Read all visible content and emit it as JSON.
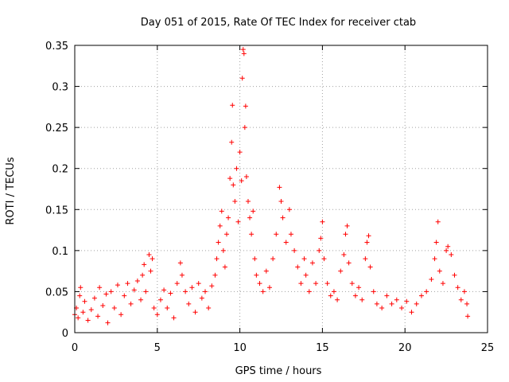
{
  "chart_data": {
    "type": "scatter",
    "title": "Day 051 of 2015, Rate Of TEC Index for receiver ctab",
    "xlabel": "GPS time / hours",
    "ylabel": "ROTI / TECUs",
    "xlim": [
      0,
      25
    ],
    "ylim": [
      0,
      0.35
    ],
    "x_ticks": [
      0,
      5,
      10,
      15,
      20,
      25
    ],
    "x_tick_labels": [
      "0",
      "5",
      "10",
      "15",
      "20",
      "25"
    ],
    "y_ticks": [
      0,
      0.05,
      0.1,
      0.15,
      0.2,
      0.25,
      0.3,
      0.35
    ],
    "y_tick_labels": [
      "0",
      "0.05",
      "0.1",
      "0.15",
      "0.2",
      "0.25",
      "0.3",
      "0.35"
    ],
    "grid": true,
    "marker": "+",
    "color": "#ff0000",
    "series": [
      {
        "name": "ROTI",
        "points": [
          [
            0.0,
            0.022
          ],
          [
            0.1,
            0.03
          ],
          [
            0.2,
            0.018
          ],
          [
            0.3,
            0.045
          ],
          [
            0.35,
            0.055
          ],
          [
            0.5,
            0.025
          ],
          [
            0.6,
            0.038
          ],
          [
            0.8,
            0.015
          ],
          [
            1.0,
            0.028
          ],
          [
            1.2,
            0.042
          ],
          [
            1.4,
            0.02
          ],
          [
            1.5,
            0.055
          ],
          [
            1.7,
            0.033
          ],
          [
            1.9,
            0.047
          ],
          [
            2.0,
            0.012
          ],
          [
            2.2,
            0.05
          ],
          [
            2.4,
            0.03
          ],
          [
            2.6,
            0.058
          ],
          [
            2.8,
            0.022
          ],
          [
            3.0,
            0.045
          ],
          [
            3.2,
            0.06
          ],
          [
            3.4,
            0.035
          ],
          [
            3.6,
            0.052
          ],
          [
            3.8,
            0.063
          ],
          [
            4.0,
            0.04
          ],
          [
            4.1,
            0.07
          ],
          [
            4.2,
            0.083
          ],
          [
            4.3,
            0.05
          ],
          [
            4.5,
            0.095
          ],
          [
            4.6,
            0.075
          ],
          [
            4.7,
            0.09
          ],
          [
            4.8,
            0.03
          ],
          [
            5.0,
            0.022
          ],
          [
            5.2,
            0.04
          ],
          [
            5.4,
            0.052
          ],
          [
            5.6,
            0.03
          ],
          [
            5.8,
            0.048
          ],
          [
            6.0,
            0.018
          ],
          [
            6.2,
            0.06
          ],
          [
            6.4,
            0.085
          ],
          [
            6.5,
            0.07
          ],
          [
            6.7,
            0.05
          ],
          [
            6.9,
            0.035
          ],
          [
            7.1,
            0.055
          ],
          [
            7.3,
            0.025
          ],
          [
            7.5,
            0.06
          ],
          [
            7.7,
            0.042
          ],
          [
            7.9,
            0.05
          ],
          [
            8.1,
            0.03
          ],
          [
            8.3,
            0.057
          ],
          [
            8.5,
            0.07
          ],
          [
            8.6,
            0.09
          ],
          [
            8.7,
            0.11
          ],
          [
            8.8,
            0.13
          ],
          [
            8.9,
            0.148
          ],
          [
            9.0,
            0.1
          ],
          [
            9.1,
            0.08
          ],
          [
            9.2,
            0.12
          ],
          [
            9.3,
            0.14
          ],
          [
            9.4,
            0.188
          ],
          [
            9.5,
            0.232
          ],
          [
            9.55,
            0.277
          ],
          [
            9.6,
            0.18
          ],
          [
            9.7,
            0.16
          ],
          [
            9.8,
            0.2
          ],
          [
            9.9,
            0.135
          ],
          [
            10.0,
            0.22
          ],
          [
            10.1,
            0.185
          ],
          [
            10.15,
            0.31
          ],
          [
            10.2,
            0.345
          ],
          [
            10.25,
            0.34
          ],
          [
            10.3,
            0.25
          ],
          [
            10.35,
            0.276
          ],
          [
            10.4,
            0.19
          ],
          [
            10.5,
            0.16
          ],
          [
            10.6,
            0.14
          ],
          [
            10.7,
            0.12
          ],
          [
            10.8,
            0.148
          ],
          [
            10.9,
            0.09
          ],
          [
            11.0,
            0.07
          ],
          [
            11.2,
            0.06
          ],
          [
            11.4,
            0.05
          ],
          [
            11.6,
            0.075
          ],
          [
            11.8,
            0.055
          ],
          [
            12.0,
            0.09
          ],
          [
            12.2,
            0.12
          ],
          [
            12.4,
            0.177
          ],
          [
            12.5,
            0.16
          ],
          [
            12.6,
            0.14
          ],
          [
            12.8,
            0.11
          ],
          [
            13.0,
            0.15
          ],
          [
            13.1,
            0.12
          ],
          [
            13.3,
            0.1
          ],
          [
            13.5,
            0.08
          ],
          [
            13.7,
            0.06
          ],
          [
            13.9,
            0.09
          ],
          [
            14.0,
            0.07
          ],
          [
            14.2,
            0.05
          ],
          [
            14.4,
            0.085
          ],
          [
            14.6,
            0.06
          ],
          [
            14.8,
            0.1
          ],
          [
            14.9,
            0.115
          ],
          [
            15.0,
            0.135
          ],
          [
            15.1,
            0.09
          ],
          [
            15.3,
            0.06
          ],
          [
            15.5,
            0.045
          ],
          [
            15.7,
            0.05
          ],
          [
            15.9,
            0.04
          ],
          [
            16.1,
            0.075
          ],
          [
            16.3,
            0.095
          ],
          [
            16.4,
            0.12
          ],
          [
            16.5,
            0.13
          ],
          [
            16.6,
            0.085
          ],
          [
            16.8,
            0.06
          ],
          [
            17.0,
            0.045
          ],
          [
            17.2,
            0.055
          ],
          [
            17.4,
            0.04
          ],
          [
            17.6,
            0.09
          ],
          [
            17.7,
            0.11
          ],
          [
            17.8,
            0.118
          ],
          [
            17.9,
            0.08
          ],
          [
            18.1,
            0.05
          ],
          [
            18.3,
            0.035
          ],
          [
            18.6,
            0.03
          ],
          [
            18.9,
            0.045
          ],
          [
            19.2,
            0.035
          ],
          [
            19.5,
            0.04
          ],
          [
            19.8,
            0.03
          ],
          [
            20.1,
            0.038
          ],
          [
            20.4,
            0.025
          ],
          [
            20.7,
            0.035
          ],
          [
            21.0,
            0.045
          ],
          [
            21.3,
            0.05
          ],
          [
            21.6,
            0.065
          ],
          [
            21.8,
            0.09
          ],
          [
            21.9,
            0.11
          ],
          [
            22.0,
            0.135
          ],
          [
            22.1,
            0.075
          ],
          [
            22.3,
            0.06
          ],
          [
            22.5,
            0.1
          ],
          [
            22.6,
            0.105
          ],
          [
            22.8,
            0.095
          ],
          [
            23.0,
            0.07
          ],
          [
            23.2,
            0.055
          ],
          [
            23.4,
            0.04
          ],
          [
            23.6,
            0.05
          ],
          [
            23.75,
            0.035
          ],
          [
            23.8,
            0.02
          ]
        ]
      }
    ]
  }
}
